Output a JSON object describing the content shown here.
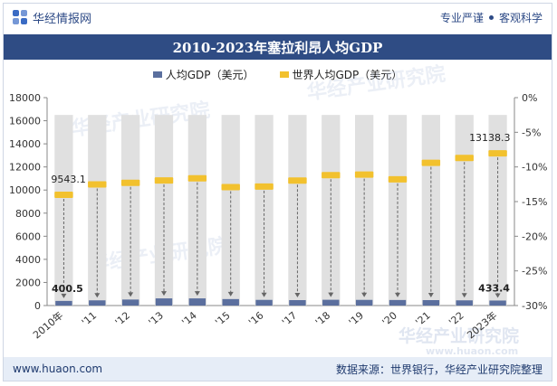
{
  "header": {
    "brand": "华经情报网",
    "slogan_left": "专业严谨",
    "slogan_right": "客观科学"
  },
  "title": "2010-2023年塞拉利昂人均GDP",
  "footer": {
    "url": "www.huaon.com",
    "source": "数据来源：世界银行，华经产业研究院整理"
  },
  "watermark": {
    "text": "华经产业研究院",
    "url": "www.huaon.com"
  },
  "colors": {
    "bar": "#5b6f9e",
    "marker": "#f2c12e",
    "band": "#e0e0e0",
    "title_bg": "#2f4c84"
  },
  "chart_data": {
    "type": "bar",
    "categories": [
      "2010年",
      "'11",
      "'12",
      "'13",
      "'14",
      "'15",
      "'16",
      "'17",
      "'18",
      "'19",
      "'20",
      "'21",
      "'22",
      "2023年"
    ],
    "series": [
      {
        "name": "人均GDP（美元）",
        "type": "bar",
        "axis": "left",
        "values": [
          400.5,
          450,
          520,
          620,
          620,
          560,
          490,
          470,
          500,
          490,
          480,
          470,
          450,
          433.4
        ]
      },
      {
        "name": "世界人均GDP（美元）",
        "type": "marker",
        "axis": "left",
        "values": [
          9543.1,
          10450,
          10580,
          10790,
          10980,
          10210,
          10260,
          10780,
          11250,
          11300,
          10890,
          12320,
          12740,
          13138.3
        ]
      }
    ],
    "data_labels": [
      {
        "text": "9543.1"
      },
      {
        "text": "13138.3"
      },
      {
        "text": "400.5"
      },
      {
        "text": "433.4"
      }
    ],
    "y_left": {
      "min": 0,
      "max": 18000,
      "ticks": [
        0,
        2000,
        4000,
        6000,
        8000,
        10000,
        12000,
        14000,
        16000,
        18000
      ]
    },
    "y_right": {
      "min": -30,
      "max": 0,
      "ticks": [
        "0%",
        "-5%",
        "-10%",
        "-15%",
        "-20%",
        "-25%",
        "-30%"
      ]
    },
    "band_top": 16500,
    "grid": false,
    "legend_position": "top-center"
  }
}
